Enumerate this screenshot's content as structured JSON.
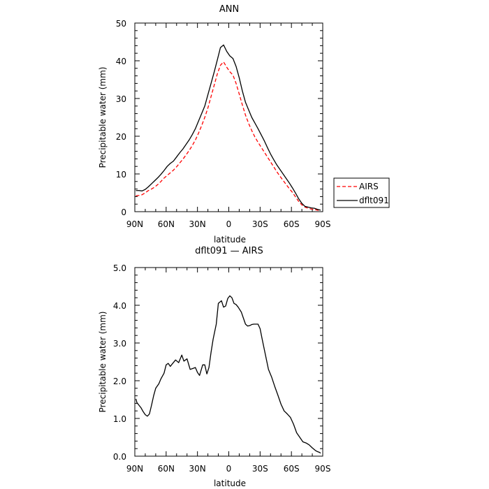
{
  "chart_data": [
    {
      "type": "line",
      "title": "ANN",
      "xlabel": "latitude",
      "ylabel": "Precipitable water (mm)",
      "xlim": [
        -90,
        90
      ],
      "ylim": [
        0,
        50
      ],
      "x_ticks": [
        -90,
        -60,
        -30,
        0,
        30,
        60,
        90
      ],
      "x_tick_labels": [
        "90N",
        "60N",
        "30N",
        "0",
        "30S",
        "60S",
        "90S"
      ],
      "y_ticks": [
        0,
        10,
        20,
        30,
        40,
        50
      ],
      "y_tick_labels": [
        "0",
        "10",
        "20",
        "30",
        "40",
        "50"
      ],
      "legend_position": "right",
      "series": [
        {
          "name": "AIRS",
          "color": "#ff0000",
          "dash": "dashed",
          "x": [
            -89,
            -86,
            -83,
            -80,
            -77,
            -74,
            -71,
            -68,
            -65,
            -62,
            -59,
            -56,
            -53,
            -50,
            -47,
            -44,
            -41,
            -38,
            -35,
            -32,
            -29,
            -26,
            -23,
            -20,
            -17,
            -14,
            -11,
            -8,
            -5,
            -2,
            1,
            4,
            7,
            10,
            13,
            16,
            19,
            22,
            25,
            28,
            31,
            34,
            37,
            40,
            43,
            46,
            49,
            52,
            55,
            58,
            61,
            64,
            67,
            70,
            73,
            76,
            79,
            82,
            85,
            88
          ],
          "y": [
            4.2,
            4.3,
            4.5,
            5,
            5.6,
            6,
            6.5,
            7.2,
            8,
            8.9,
            9.6,
            10.3,
            11,
            11.9,
            12.9,
            13.9,
            15,
            16.2,
            17.5,
            19,
            20.8,
            22.8,
            25,
            27.5,
            30.5,
            33.5,
            36.5,
            38.8,
            39.7,
            38.3,
            37.1,
            36.2,
            34,
            31.2,
            28.3,
            25.6,
            23.4,
            21.5,
            19.8,
            18.4,
            17.1,
            15.8,
            14.5,
            13.2,
            11.9,
            10.6,
            9.4,
            8.3,
            7.2,
            6.1,
            5.1,
            3.9,
            2.7,
            1.8,
            1.2,
            0.9,
            0.7,
            0.6,
            0.4,
            0.3
          ]
        },
        {
          "name": "dflt091",
          "color": "#000000",
          "dash": "solid",
          "x": [
            -89,
            -86,
            -83,
            -80,
            -77,
            -74,
            -71,
            -68,
            -65,
            -62,
            -59,
            -56,
            -53,
            -50,
            -47,
            -44,
            -41,
            -38,
            -35,
            -32,
            -29,
            -26,
            -23,
            -20,
            -17,
            -14,
            -11,
            -8,
            -5,
            -2,
            1,
            4,
            7,
            10,
            13,
            16,
            19,
            22,
            25,
            28,
            31,
            34,
            37,
            40,
            43,
            46,
            49,
            52,
            55,
            58,
            61,
            64,
            67,
            70,
            73,
            76,
            79,
            82,
            85,
            88
          ],
          "y": [
            5.6,
            5.6,
            5.5,
            5.9,
            6.6,
            7.4,
            8.2,
            9,
            9.9,
            10.9,
            12,
            12.8,
            13.4,
            14.5,
            15.6,
            16.6,
            17.8,
            19,
            20.4,
            22,
            24,
            26,
            28,
            31,
            34,
            37,
            40.2,
            43.5,
            44.2,
            42.5,
            41.3,
            40.6,
            38.5,
            35.5,
            32,
            29,
            27,
            25,
            23.5,
            22,
            20.4,
            18.8,
            17,
            15.3,
            13.8,
            12.4,
            11.2,
            10,
            8.8,
            7.6,
            6.3,
            4.9,
            3.4,
            2.2,
            1.4,
            1.2,
            1,
            0.9,
            0.6,
            0.4
          ]
        }
      ]
    },
    {
      "type": "line",
      "title": "dflt091 — AIRS",
      "xlabel": "latitude",
      "ylabel": "Precipitable water (mm)",
      "xlim": [
        -90,
        90
      ],
      "ylim": [
        0,
        5
      ],
      "x_ticks": [
        -90,
        -60,
        -30,
        0,
        30,
        60,
        90
      ],
      "x_tick_labels": [
        "90N",
        "60N",
        "30N",
        "0",
        "30S",
        "60S",
        "90S"
      ],
      "y_ticks": [
        0,
        1,
        2,
        3,
        4,
        5
      ],
      "y_tick_labels": [
        "0.0",
        "1.0",
        "2.0",
        "3.0",
        "4.0",
        "5.0"
      ],
      "series": [
        {
          "color": "#000000",
          "dash": "solid",
          "x": [
            -89,
            -88,
            -86,
            -84,
            -82,
            -80,
            -78,
            -76,
            -74,
            -72,
            -70,
            -67,
            -65,
            -62,
            -60,
            -58,
            -56,
            -54,
            -51,
            -48,
            -45,
            -43,
            -40,
            -37,
            -35,
            -32,
            -30,
            -28,
            -25,
            -23,
            -21,
            -19,
            -17,
            -15,
            -12,
            -10,
            -7,
            -5,
            -3,
            -1,
            1,
            3,
            5,
            7,
            9,
            12,
            14,
            16,
            18,
            20,
            22,
            24,
            26,
            28,
            30,
            32,
            35,
            38,
            41,
            44,
            47,
            50,
            53,
            56,
            59,
            62,
            65,
            68,
            71,
            74,
            77,
            80,
            83,
            85,
            87,
            88
          ],
          "y": [
            1.52,
            1.42,
            1.35,
            1.28,
            1.18,
            1.1,
            1.06,
            1.12,
            1.35,
            1.6,
            1.8,
            1.92,
            2.05,
            2.2,
            2.42,
            2.46,
            2.38,
            2.45,
            2.55,
            2.48,
            2.68,
            2.52,
            2.58,
            2.3,
            2.32,
            2.35,
            2.22,
            2.14,
            2.42,
            2.42,
            2.18,
            2.35,
            2.75,
            3.1,
            3.5,
            4.05,
            4.12,
            3.95,
            3.98,
            4.18,
            4.25,
            4.2,
            4.05,
            4.02,
            3.95,
            3.82,
            3.66,
            3.5,
            3.45,
            3.46,
            3.49,
            3.5,
            3.5,
            3.5,
            3.38,
            3.1,
            2.7,
            2.3,
            2.1,
            1.85,
            1.62,
            1.38,
            1.2,
            1.12,
            1.03,
            0.85,
            0.62,
            0.5,
            0.38,
            0.35,
            0.3,
            0.22,
            0.15,
            0.12,
            0.1,
            0.08
          ]
        }
      ]
    }
  ]
}
